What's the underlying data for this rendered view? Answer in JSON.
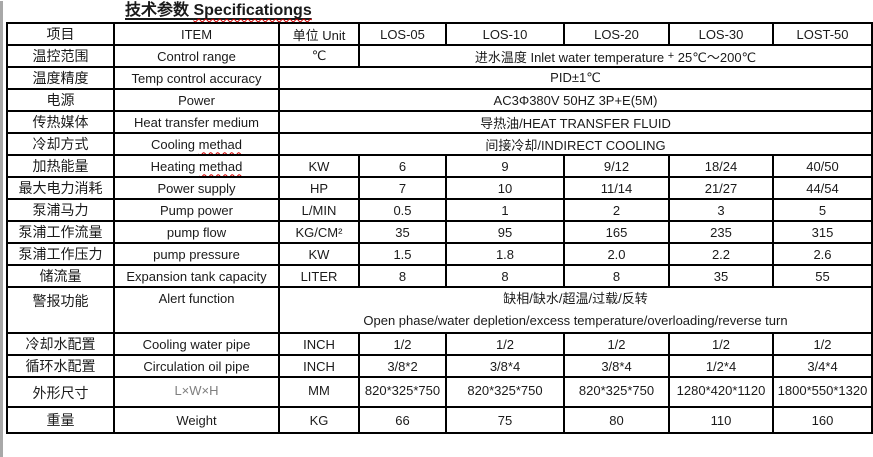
{
  "page": {
    "title_zh": "技术参数",
    "title_en": "Specificationgs"
  },
  "colors": {
    "text": "#1a1a1a",
    "border": "#000000",
    "misspell_underline": "#d40000",
    "dim_label_gray": "#7f7f7f",
    "edge_strip": "#a8a8a8"
  },
  "table": {
    "header": [
      {
        "t": "项目",
        "name": "col-header-item-zh"
      },
      {
        "t": "ITEM",
        "name": "col-header-item-en"
      },
      {
        "t": "单位 Unit",
        "name": "col-header-unit"
      },
      {
        "t": "LOS-05",
        "name": "col-header-los-05"
      },
      {
        "t": "LOS-10",
        "name": "col-header-los-10"
      },
      {
        "t": "LOS-20",
        "name": "col-header-los-20"
      },
      {
        "t": "LOS-30",
        "name": "col-header-los-30"
      },
      {
        "t": "LOST-50",
        "name": "col-header-lost-50"
      }
    ],
    "rows": [
      [
        {
          "t": "温控范围"
        },
        {
          "t": "Control range"
        },
        {
          "t": "℃"
        },
        {
          "span": 5,
          "parts": [
            {
              "t": "进水温度 Inlet water temperature "
            },
            {
              "t": "+",
              "sup": true
            },
            {
              "t": " 25℃～200℃"
            }
          ]
        }
      ],
      [
        {
          "t": "温度精度"
        },
        {
          "t": "Temp control accuracy"
        },
        {
          "span": 6,
          "t": "PID±1℃"
        }
      ],
      [
        {
          "t": "电源"
        },
        {
          "t": "Power"
        },
        {
          "span": 6,
          "t": "AC3Φ380V 50HZ 3P+E(5M)"
        }
      ],
      [
        {
          "t": "传热媒体"
        },
        {
          "t": "Heat transfer medium"
        },
        {
          "span": 6,
          "t": "导热油/HEAT TRANSFER FLUID"
        }
      ],
      [
        {
          "t": "冷却方式"
        },
        {
          "parts": [
            {
              "t": "Cooling "
            },
            {
              "t": "methad",
              "wavy": true
            }
          ]
        },
        {
          "span": 6,
          "t": "间接冷却/INDIRECT COOLING"
        }
      ],
      [
        {
          "t": "加热能量"
        },
        {
          "parts": [
            {
              "t": "Heating "
            },
            {
              "t": "methad",
              "wavy": true
            }
          ]
        },
        {
          "t": "KW"
        },
        {
          "t": "6"
        },
        {
          "t": "9"
        },
        {
          "t": "9/12"
        },
        {
          "t": "18/24"
        },
        {
          "t": "40/50"
        }
      ],
      [
        {
          "t": "最大电力消耗"
        },
        {
          "t": "Power supply"
        },
        {
          "t": "HP"
        },
        {
          "t": "7"
        },
        {
          "t": "10"
        },
        {
          "t": "11/14"
        },
        {
          "t": "21/27"
        },
        {
          "t": "44/54"
        }
      ],
      [
        {
          "t": "泵浦马力"
        },
        {
          "t": "Pump power"
        },
        {
          "t": "L/MIN"
        },
        {
          "t": "0.5"
        },
        {
          "t": "1"
        },
        {
          "t": "2"
        },
        {
          "t": "3"
        },
        {
          "t": "5"
        }
      ],
      [
        {
          "t": "泵浦工作流量"
        },
        {
          "t": "pump flow"
        },
        {
          "t": "KG/CM²"
        },
        {
          "t": "35"
        },
        {
          "t": "95"
        },
        {
          "t": "165"
        },
        {
          "t": "235"
        },
        {
          "t": "315"
        }
      ],
      [
        {
          "t": "泵浦工作压力"
        },
        {
          "t": "pump pressure"
        },
        {
          "t": "KW"
        },
        {
          "t": "1.5"
        },
        {
          "t": "1.8"
        },
        {
          "t": "2.0"
        },
        {
          "t": "2.2"
        },
        {
          "t": "2.6"
        }
      ],
      [
        {
          "t": "储流量"
        },
        {
          "t": "Expansion tank capacity"
        },
        {
          "t": "LITER"
        },
        {
          "t": "8"
        },
        {
          "t": "8"
        },
        {
          "t": "8"
        },
        {
          "t": "35"
        },
        {
          "t": "55"
        }
      ],
      [
        {
          "t": "警报功能"
        },
        {
          "t": "Alert function"
        },
        {
          "span": 6,
          "lines": [
            "缺相/缺水/超温/过载/反转",
            "Open phase/water depletion/excess temperature/overloading/reverse turn"
          ]
        }
      ],
      [
        {
          "t": "冷却水配置"
        },
        {
          "t": "Cooling water pipe"
        },
        {
          "t": "INCH"
        },
        {
          "t": "1/2"
        },
        {
          "t": "1/2"
        },
        {
          "t": "1/2"
        },
        {
          "t": "1/2"
        },
        {
          "t": "1/2"
        }
      ],
      [
        {
          "t": "循环水配置"
        },
        {
          "t": "Circulation oil pipe"
        },
        {
          "t": "INCH"
        },
        {
          "t": "3/8*2"
        },
        {
          "t": "3/8*4"
        },
        {
          "t": "3/8*4"
        },
        {
          "t": "1/2*4"
        },
        {
          "t": "3/4*4"
        }
      ],
      [
        {
          "t": "外形尺寸"
        },
        {
          "t": "L×W×H",
          "gray": true
        },
        {
          "t": "MM"
        },
        {
          "t": "820*325*750"
        },
        {
          "t": "820*325*750"
        },
        {
          "t": "820*325*750"
        },
        {
          "t": "1280*420*1120"
        },
        {
          "t": "1800*550*1320"
        }
      ],
      [
        {
          "t": "重量"
        },
        {
          "t": "Weight"
        },
        {
          "t": "KG"
        },
        {
          "t": "66"
        },
        {
          "t": "75"
        },
        {
          "t": "80"
        },
        {
          "t": "110"
        },
        {
          "t": "160"
        }
      ]
    ]
  }
}
